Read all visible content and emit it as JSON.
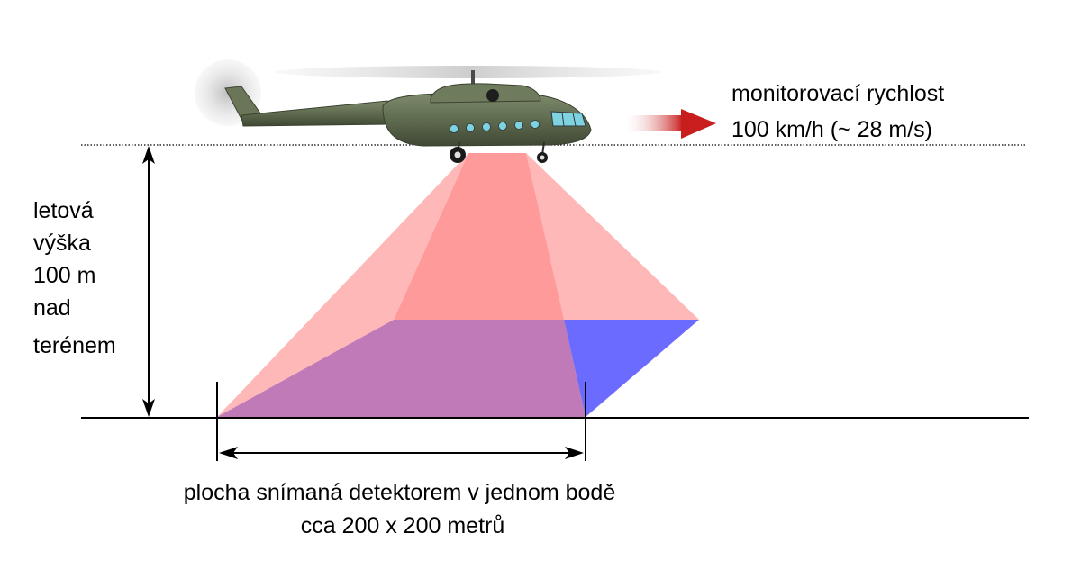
{
  "speed_label": {
    "line1": "monitorovací rychlost",
    "line2": "100 km/h (~ 28 m/s)"
  },
  "altitude_label": {
    "line1": "letová",
    "line2": "výška",
    "line3": "100 m",
    "line4": "nad",
    "line5": "terénem"
  },
  "footprint_label": {
    "line1": "plocha snímaná detektorem v jednom bodě",
    "line2": "cca 200 x 200 metrů"
  },
  "colors": {
    "beam_light": "#ffb8b8",
    "beam_dark": "#ff9a9a",
    "footprint_front": "#c07ab8",
    "footprint_side": "#6b6bff",
    "helicopter_body": "#5f6b4f",
    "speed_arrow": "#c81e1e",
    "window": "#7fd3e0"
  }
}
